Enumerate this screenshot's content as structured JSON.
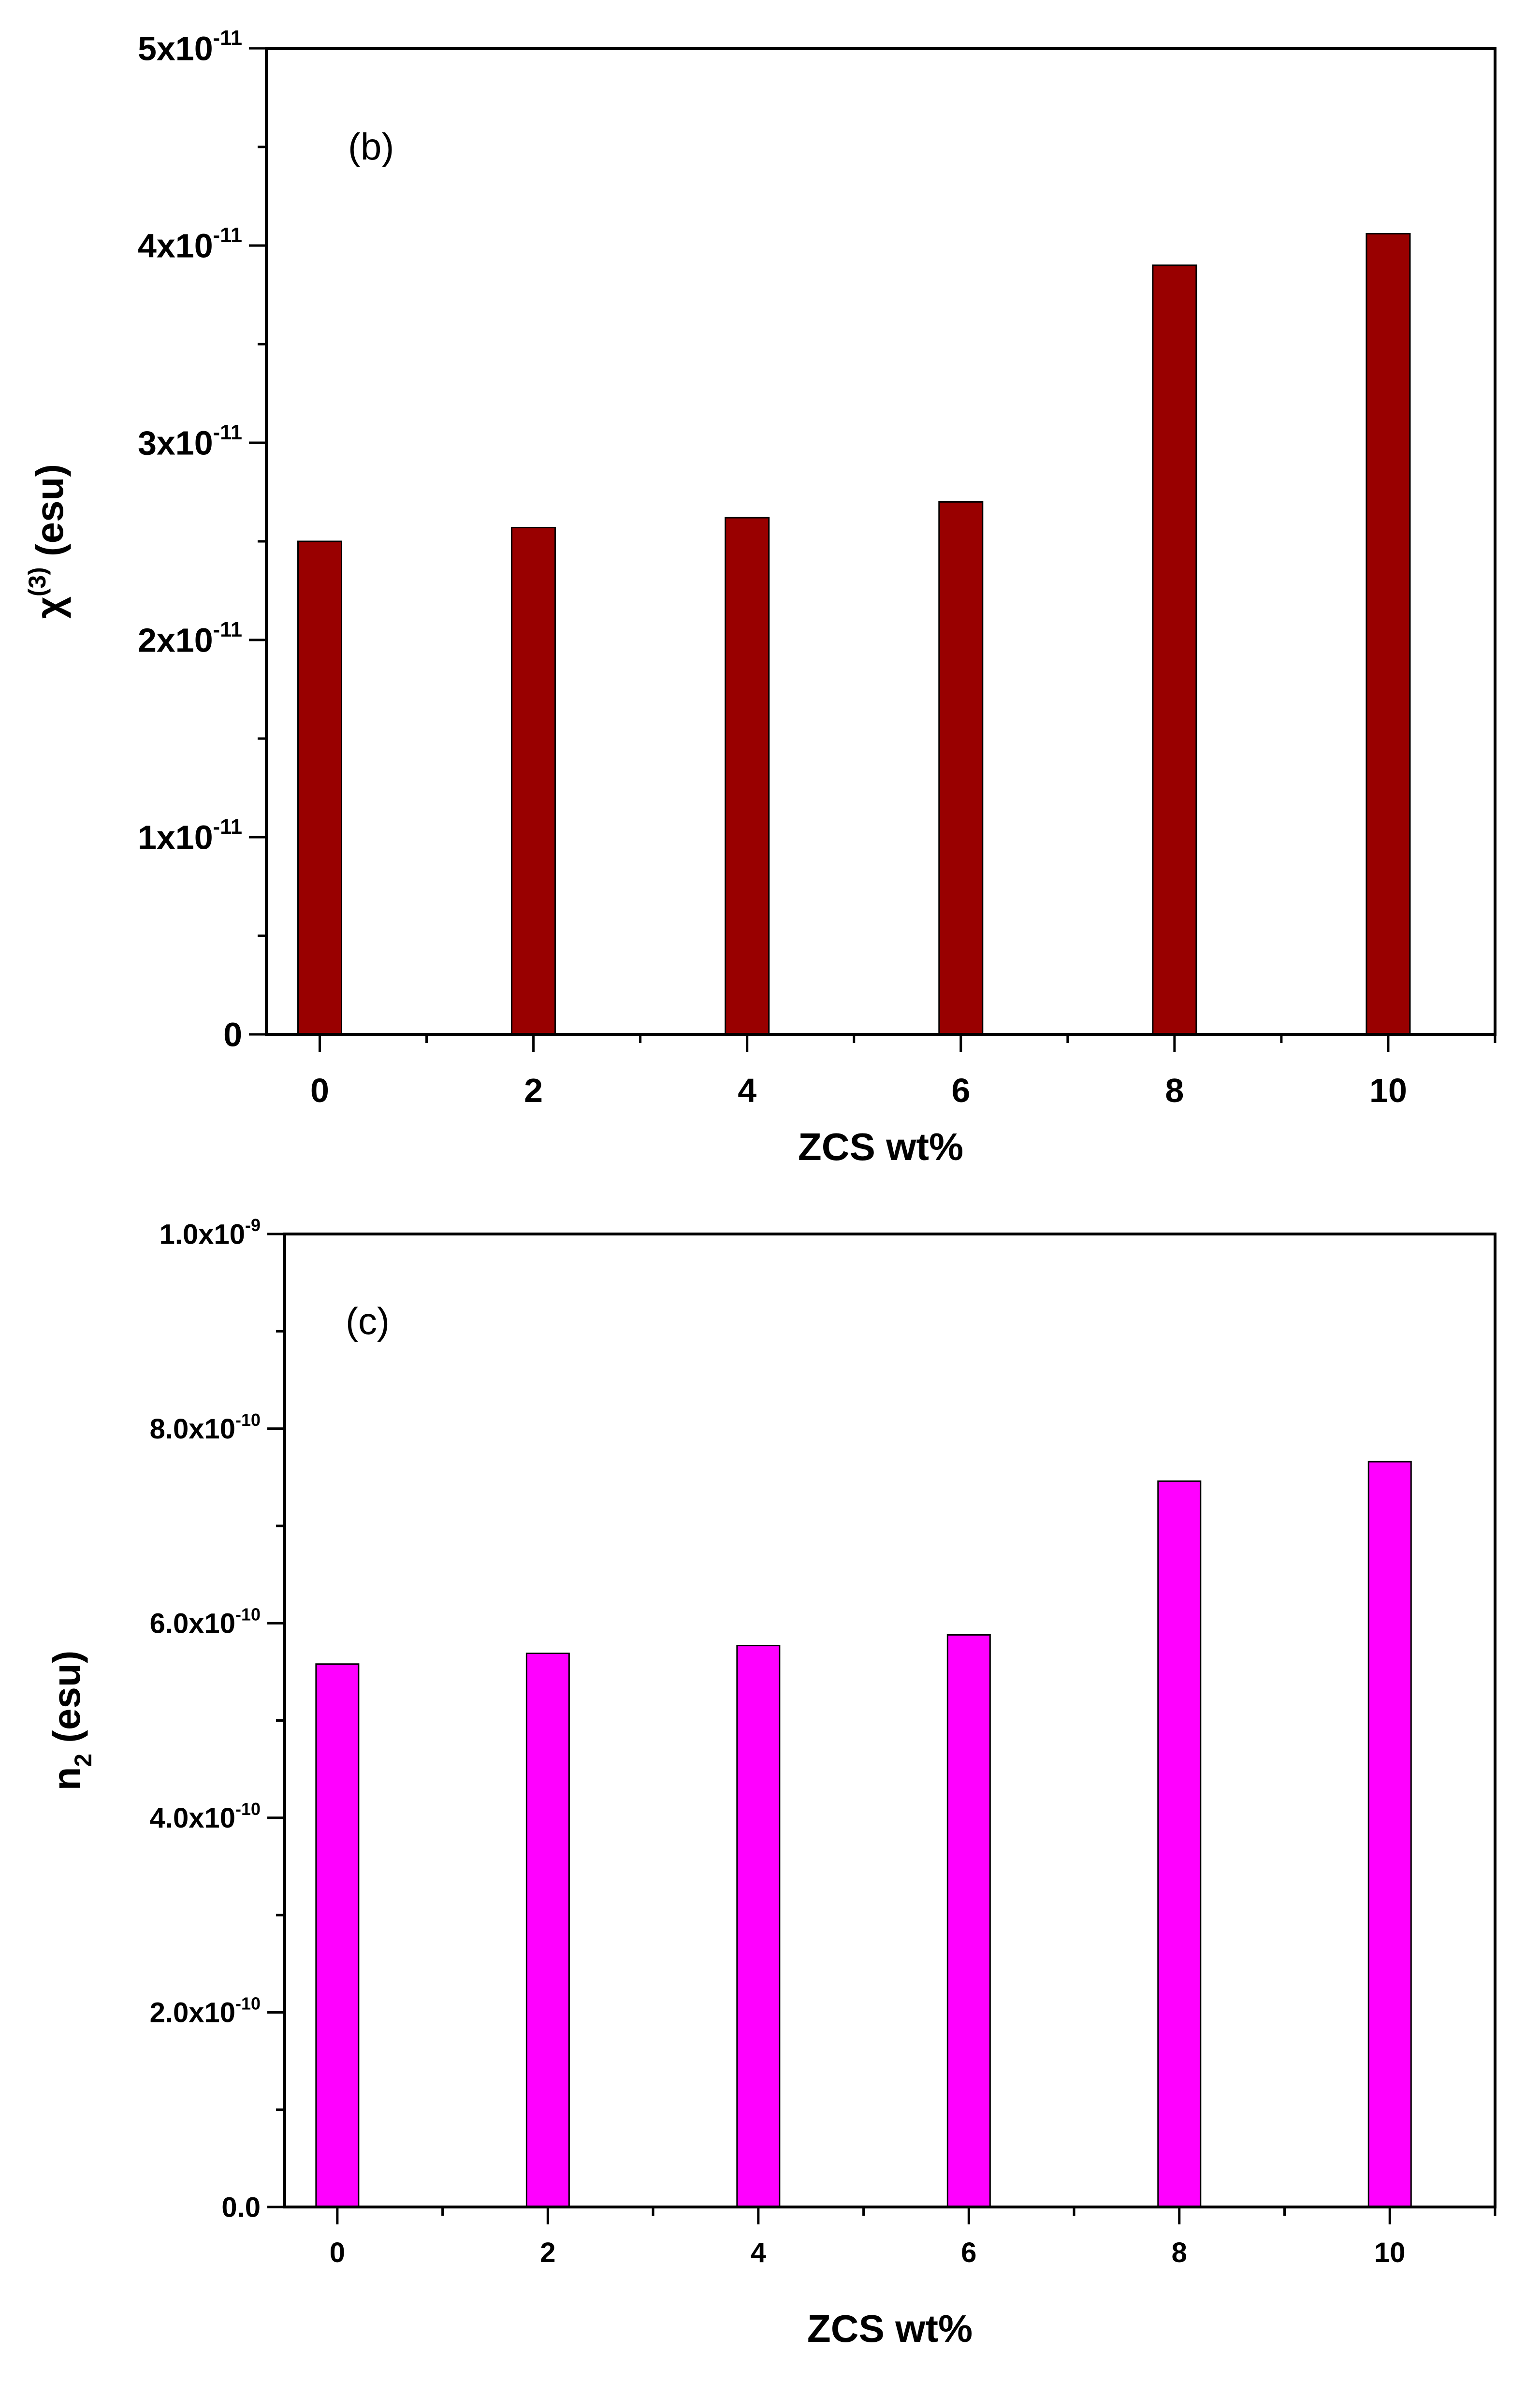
{
  "chart_data": [
    {
      "type": "bar",
      "panel_label": "(b)",
      "categories": [
        "0",
        "2",
        "4",
        "6",
        "8",
        "10"
      ],
      "x": [
        0,
        2,
        4,
        6,
        8,
        10
      ],
      "values": [
        2.5e-11,
        2.57e-11,
        2.62e-11,
        2.7e-11,
        3.9e-11,
        4.06e-11
      ],
      "xlabel": "ZCS wt%",
      "ylabel": {
        "base": "χ",
        "sup": "(3)",
        "tail": " (esu)"
      },
      "ylim": [
        0,
        5e-11
      ],
      "xlim": [
        -0.5,
        11
      ],
      "bar_color": "#990000",
      "yticks": [
        {
          "value": 0,
          "base": "0",
          "exp": ""
        },
        {
          "value": 1e-11,
          "base": "1x10",
          "exp": "-11"
        },
        {
          "value": 2e-11,
          "base": "2x10",
          "exp": "-11"
        },
        {
          "value": 3e-11,
          "base": "3x10",
          "exp": "-11"
        },
        {
          "value": 4e-11,
          "base": "4x10",
          "exp": "-11"
        },
        {
          "value": 5e-11,
          "base": "5x10",
          "exp": "-11"
        }
      ],
      "xticks": [
        "0",
        "2",
        "4",
        "6",
        "8",
        "10"
      ],
      "grid": false,
      "legend": "none"
    },
    {
      "type": "bar",
      "panel_label": "(c)",
      "categories": [
        "0",
        "2",
        "4",
        "6",
        "8",
        "10"
      ],
      "x": [
        0,
        2,
        4,
        6,
        8,
        10
      ],
      "values": [
        5.58e-10,
        5.69e-10,
        5.77e-10,
        5.88e-10,
        7.46e-10,
        7.66e-10
      ],
      "xlabel": "ZCS wt%",
      "ylabel": {
        "base": "n",
        "sub": "2",
        "tail": " (esu)"
      },
      "ylim": [
        0,
        1e-09
      ],
      "xlim": [
        -0.5,
        11
      ],
      "bar_color": "#ff00ff",
      "yticks": [
        {
          "value": 0,
          "base": "0.0",
          "exp": ""
        },
        {
          "value": 2e-10,
          "base": "2.0x10",
          "exp": "-10"
        },
        {
          "value": 4e-10,
          "base": "4.0x10",
          "exp": "-10"
        },
        {
          "value": 6e-10,
          "base": "6.0x10",
          "exp": "-10"
        },
        {
          "value": 8e-10,
          "base": "8.0x10",
          "exp": "-10"
        },
        {
          "value": 1e-09,
          "base": "1.0x10",
          "exp": "-9"
        }
      ],
      "xticks": [
        "0",
        "2",
        "4",
        "6",
        "8",
        "10"
      ],
      "grid": false,
      "legend": "none"
    }
  ]
}
